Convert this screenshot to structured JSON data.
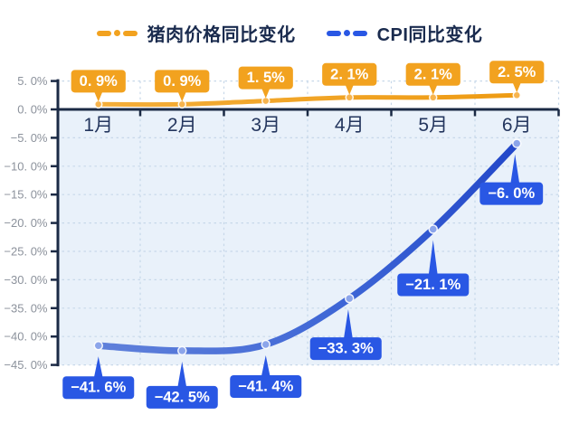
{
  "chart_data": {
    "type": "line",
    "categories": [
      "1月",
      "2月",
      "3月",
      "4月",
      "5月",
      "6月"
    ],
    "series": [
      {
        "key": "pork-price",
        "name": "猪肉价格同比变化",
        "color": "#F2A21F",
        "line_gradient": [
          "#F4AE3A",
          "#EE9B13"
        ],
        "point_fill": "#F7B44E",
        "values": [
          0.9,
          0.9,
          1.5,
          2.1,
          2.1,
          2.5
        ],
        "point_labels": [
          "0. 9%",
          "0. 9%",
          "1. 5%",
          "2. 1%",
          "2. 1%",
          "2. 5%"
        ],
        "label_side": "above"
      },
      {
        "key": "cpi",
        "name": "CPI同比变化",
        "color": "#2957E4",
        "line_gradient": [
          "#5F80DA",
          "#3E66D6",
          "#2247C9"
        ],
        "point_fill": "#8CA5EA",
        "values": [
          -41.6,
          -42.5,
          -41.4,
          -33.3,
          -21.1,
          -6.0
        ],
        "point_labels": [
          "−41. 6%",
          "−42. 5%",
          "−41. 4%",
          "−33. 3%",
          "−21. 1%",
          "−6. 0%"
        ],
        "label_side": "below",
        "label_dy": [
          34,
          39,
          34,
          43,
          49,
          43
        ],
        "label_dx": [
          0,
          0,
          0,
          -4,
          0,
          -6
        ]
      }
    ],
    "y_axis": {
      "min": -45,
      "max": 5,
      "step": 5,
      "tick_labels": [
        "5. 0%",
        "0. 0%",
        "−5. 0%",
        "−10. 0%",
        "−15. 0%",
        "−20. 0%",
        "−25. 0%",
        "−30. 0%",
        "−35. 0%",
        "−40. 0%",
        "−45. 0%"
      ]
    },
    "grid": true,
    "legend_position": "top",
    "xlabel": "",
    "ylabel": "",
    "title": ""
  },
  "colors": {
    "axis": "#1B2A45",
    "grid": "#C7D8E9",
    "plot_bg_below_zero": "#E9F1FA",
    "y_tick_label": "#8C929C",
    "x_tick_label": "#24365E",
    "legend_text": "#1A2B4E",
    "callout_text": "#FFFFFF"
  }
}
